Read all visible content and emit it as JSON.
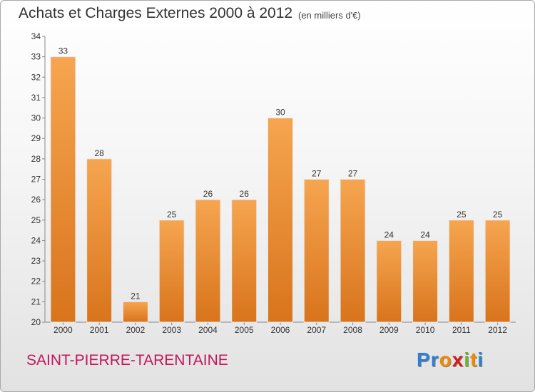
{
  "header": {
    "title": "Achats et Charges Externes 2000 à 2012",
    "unit": "(en milliers d'€)"
  },
  "footer": {
    "commune": "SAINT-PIERRE-TARENTAINE",
    "brand": "Proxiti",
    "brand_colors": [
      "#2e7fd1",
      "#2e7fd1",
      "#f08a00",
      "#d61a1a",
      "#6bb33a",
      "#f08a00",
      "#2e7fd1"
    ]
  },
  "colors": {
    "bar_top": "#f6a550",
    "bar_bottom": "#d8741c",
    "commune": "#c2185b"
  },
  "chart_data": {
    "type": "bar",
    "categories": [
      "2000",
      "2001",
      "2002",
      "2003",
      "2004",
      "2005",
      "2006",
      "2007",
      "2008",
      "2009",
      "2010",
      "2011",
      "2012"
    ],
    "values": [
      33,
      28,
      21,
      25,
      26,
      26,
      30,
      27,
      27,
      24,
      24,
      25,
      25
    ],
    "data_labels": [
      "33",
      "28",
      "21",
      "25",
      "26",
      "26",
      "30",
      "27",
      "27",
      "24",
      "24",
      "25",
      "25"
    ],
    "title": "Achats et Charges Externes 2000 à 2012",
    "xlabel": "",
    "ylabel": "",
    "ylim": [
      20,
      34
    ],
    "yticks": [
      "20",
      "21",
      "22",
      "23",
      "24",
      "25",
      "26",
      "27",
      "28",
      "29",
      "30",
      "31",
      "32",
      "33",
      "34"
    ],
    "grid": false,
    "legend": "none"
  }
}
